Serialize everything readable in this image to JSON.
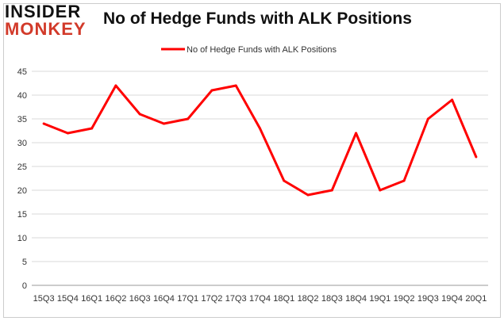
{
  "logo": {
    "line1": "INSIDER",
    "line2": "MONKEY"
  },
  "chart_data": {
    "type": "line",
    "title": "No of Hedge Funds with ALK Positions",
    "legend": {
      "label": "No of Hedge Funds with ALK Positions",
      "position": "top"
    },
    "categories": [
      "15Q3",
      "15Q4",
      "16Q1",
      "16Q2",
      "16Q3",
      "16Q4",
      "17Q1",
      "17Q2",
      "17Q3",
      "17Q4",
      "18Q1",
      "18Q2",
      "18Q3",
      "18Q4",
      "19Q1",
      "19Q2",
      "19Q3",
      "19Q4",
      "20Q1"
    ],
    "series": [
      {
        "name": "No of Hedge Funds with ALK Positions",
        "values": [
          34,
          32,
          33,
          42,
          36,
          34,
          35,
          41,
          42,
          33,
          22,
          19,
          20,
          32,
          20,
          22,
          35,
          39,
          27
        ],
        "color": "#ff0000"
      }
    ],
    "ylim": [
      0,
      45
    ],
    "yticks": [
      0,
      5,
      10,
      15,
      20,
      25,
      30,
      35,
      40,
      45
    ],
    "grid": true,
    "xlabel": "",
    "ylabel": ""
  }
}
